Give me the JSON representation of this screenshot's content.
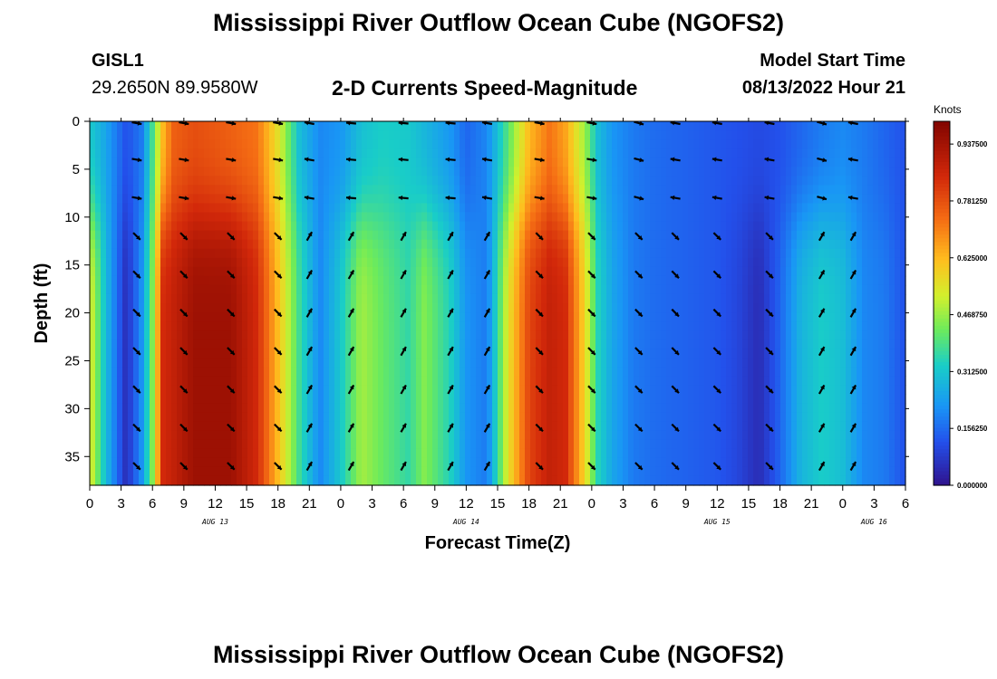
{
  "header": {
    "title": "Mississippi River Outflow Ocean Cube (NGOFS2)",
    "station_id": "GISL1",
    "station_coords": "29.2650N  89.9580W",
    "subtitle": "2-D Currents Speed-Magnitude",
    "model_start_label": "Model Start Time",
    "model_start_value": "08/13/2022 Hour 21"
  },
  "footer": {
    "title": "Mississippi River Outflow Ocean Cube (NGOFS2)"
  },
  "chart_data": {
    "type": "heatmap",
    "title": "2-D Currents Speed-Magnitude",
    "xlabel": "Forecast Time(Z)",
    "ylabel": "Depth (ft)",
    "xlim": [
      0,
      78
    ],
    "ylim": [
      38,
      0
    ],
    "x_tick_values": [
      0,
      3,
      6,
      9,
      12,
      15,
      18,
      21,
      24,
      27,
      30,
      33,
      36,
      39,
      42,
      45,
      48,
      51,
      54,
      57,
      60,
      63,
      66,
      69,
      72,
      75,
      78
    ],
    "x_tick_labels": [
      "0",
      "3",
      "6",
      "9",
      "12",
      "15",
      "18",
      "21",
      "0",
      "3",
      "6",
      "9",
      "12",
      "15",
      "18",
      "21",
      "0",
      "3",
      "6",
      "9",
      "12",
      "15",
      "18",
      "21",
      "0",
      "3",
      "6"
    ],
    "y_ticks": [
      0,
      5,
      10,
      15,
      20,
      25,
      30,
      35
    ],
    "date_labels": [
      {
        "x": 12,
        "text": "AUG 13"
      },
      {
        "x": 36,
        "text": "AUG 14"
      },
      {
        "x": 60,
        "text": "AUG 15"
      },
      {
        "x": 75,
        "text": "AUG 16"
      }
    ],
    "colorbar": {
      "label": "Knots",
      "min": 0.0,
      "max": 1.0,
      "ticks": [
        0.0,
        0.15625,
        0.3125,
        0.46875,
        0.625,
        0.78125,
        0.9375
      ],
      "tick_labels": [
        "0.000000",
        "0.156250",
        "0.312500",
        "0.468750",
        "0.625000",
        "0.781250",
        "0.937500"
      ]
    },
    "speed_profile": {
      "times": [
        0,
        1.5,
        3.5,
        5,
        6,
        7,
        8,
        10,
        13.5,
        16,
        18,
        20,
        22,
        24,
        26,
        28,
        30.5,
        32,
        34.5,
        36,
        38,
        40,
        42,
        44,
        45.5,
        47.5,
        48.5,
        50,
        52,
        54,
        56,
        58,
        60,
        62,
        64,
        66,
        68,
        70,
        72,
        74,
        76,
        78
      ],
      "surface": [
        0.32,
        0.25,
        0.12,
        0.18,
        0.38,
        0.62,
        0.75,
        0.78,
        0.75,
        0.72,
        0.55,
        0.3,
        0.2,
        0.22,
        0.3,
        0.33,
        0.32,
        0.28,
        0.22,
        0.15,
        0.2,
        0.4,
        0.62,
        0.72,
        0.65,
        0.45,
        0.3,
        0.22,
        0.18,
        0.16,
        0.15,
        0.14,
        0.13,
        0.12,
        0.11,
        0.12,
        0.15,
        0.18,
        0.2,
        0.18,
        0.15,
        0.12
      ],
      "deep": [
        0.55,
        0.3,
        0.05,
        0.22,
        0.45,
        0.85,
        0.88,
        0.95,
        0.95,
        0.85,
        0.62,
        0.38,
        0.2,
        0.32,
        0.48,
        0.42,
        0.36,
        0.45,
        0.34,
        0.22,
        0.18,
        0.55,
        0.8,
        0.88,
        0.85,
        0.55,
        0.35,
        0.25,
        0.18,
        0.16,
        0.15,
        0.14,
        0.13,
        0.1,
        0.05,
        0.15,
        0.28,
        0.33,
        0.3,
        0.2,
        0.18,
        0.12
      ],
      "shift_depth": 10,
      "shift_width": 2.5
    },
    "vectors": {
      "times": [
        4.5,
        9,
        13.5,
        18,
        21,
        25,
        30,
        34.5,
        38,
        43,
        48,
        52.5,
        56,
        60,
        65,
        70,
        73
      ],
      "depths": [
        0,
        4,
        8,
        12,
        16,
        20,
        24,
        28,
        32,
        36
      ],
      "surface_angle_deg": [
        10,
        10,
        10,
        10,
        190,
        185,
        185,
        185,
        190,
        10,
        10,
        15,
        190,
        190,
        190,
        15,
        190
      ],
      "deep_angle_deg": [
        45,
        45,
        45,
        45,
        300,
        300,
        300,
        300,
        300,
        45,
        45,
        45,
        45,
        45,
        45,
        300,
        300
      ]
    }
  }
}
